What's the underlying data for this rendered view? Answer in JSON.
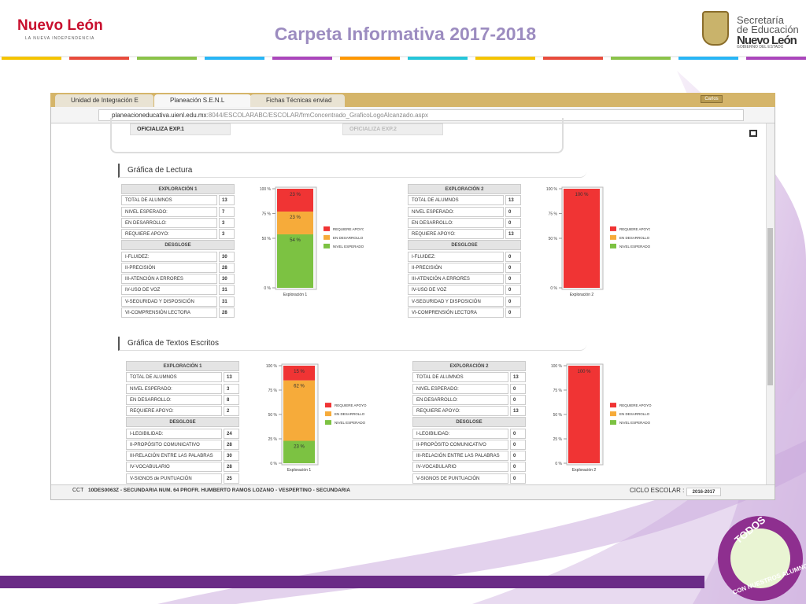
{
  "header": {
    "title": "Carpeta Informativa 2017-2018",
    "logo_left": "Nuevo León",
    "logo_left_tagline": "LA NUEVA INDEPENDENCIA",
    "logo_right": [
      "Secretaría",
      "de Educación",
      "Nuevo León",
      "GOBIERNO DEL ESTADO"
    ]
  },
  "browser": {
    "tabs": [
      "Unidad de Integración E",
      "Planeación S.E.N.L",
      "Fichas Técnicas enviad"
    ],
    "user": "Carlos",
    "url_host": "planeacioneducativa.uienl.edu.mx",
    "url_path": ":8044/ESCOLARABC/ESCOLAR/frmConcentrado_GraficoLogoAlcanzado.aspx"
  },
  "buttons": [
    "OFICIALIZA EXP.1",
    "OFICIALIZA EXP.2"
  ],
  "sections": [
    {
      "title": "Gráfica de Lectura",
      "panels": [
        {
          "table_header": "EXPLORACIÓN 1",
          "rows": [
            [
              "TOTAL DE ALUMNOS",
              13
            ],
            [
              "NIVEL ESPERADO:",
              7
            ],
            [
              "EN DESARROLLO:",
              3
            ],
            [
              "REQUIERE APOYO:",
              3
            ]
          ],
          "desglose_header": "DESGLOSE",
          "desglose": [
            [
              "I-FLUIDEZ:",
              30
            ],
            [
              "II-PRECISIÓN",
              28
            ],
            [
              "III-ATENCIÓN A ERRORES",
              30
            ],
            [
              "IV-USO DE VOZ",
              31
            ],
            [
              "V-SEGURIDAD Y DISPOSICIÓN",
              31
            ],
            [
              "VI-COMPRENSIÓN LECTORA",
              28
            ]
          ],
          "chart": {
            "type": "bar",
            "stacked": true,
            "x_label": "Exploración 1",
            "ylim": [
              0,
              100
            ],
            "yticks": [
              {
                "value": 0,
                "label": "0 %"
              },
              {
                "value": 50,
                "label": "50 %"
              },
              {
                "value": 75,
                "label": "75 %"
              },
              {
                "value": 100,
                "label": "100 %"
              }
            ],
            "series": [
              {
                "name": "REQUIERE APOYO",
                "color": "#f03434",
                "values": [
                  23
                ],
                "value_labels": [
                  "23 %"
                ]
              },
              {
                "name": "EN DESARROLLO",
                "color": "#f6ab3a",
                "values": [
                  23
                ],
                "value_labels": [
                  "23 %"
                ]
              },
              {
                "name": "NIVEL ESPERADO",
                "color": "#7cc242",
                "values": [
                  54
                ],
                "value_labels": [
                  "54 %"
                ]
              }
            ]
          }
        },
        {
          "table_header": "EXPLORACIÓN 2",
          "rows": [
            [
              "TOTAL DE ALUMNOS",
              13
            ],
            [
              "NIVEL ESPERADO:",
              0
            ],
            [
              "EN DESARROLLO:",
              0
            ],
            [
              "REQUIERE APOYO:",
              13
            ]
          ],
          "desglose_header": "DESGLOSE",
          "desglose": [
            [
              "I-FLUIDEZ:",
              0
            ],
            [
              "II-PRECISIÓN",
              0
            ],
            [
              "III-ATENCIÓN A ERRORES",
              0
            ],
            [
              "IV-USO DE VOZ",
              0
            ],
            [
              "V-SEGURIDAD Y DISPOSICIÓN",
              0
            ],
            [
              "VI-COMPRENSIÓN LECTORA",
              0
            ]
          ],
          "chart": {
            "type": "bar",
            "stacked": true,
            "x_label": "Exploración 2",
            "ylim": [
              0,
              100
            ],
            "yticks": [
              {
                "value": 0,
                "label": "0 %"
              },
              {
                "value": 50,
                "label": "50 %"
              },
              {
                "value": 75,
                "label": "75 %"
              },
              {
                "value": 100,
                "label": "100 %"
              }
            ],
            "series": [
              {
                "name": "REQUIERE APOYO",
                "color": "#f03434",
                "values": [
                  100
                ],
                "value_labels": [
                  "100 %"
                ]
              },
              {
                "name": "EN DESARROLLO",
                "color": "#f6ab3a",
                "values": [
                  0
                ],
                "value_labels": [
                  null
                ]
              },
              {
                "name": "NIVEL ESPERADO",
                "color": "#7cc242",
                "values": [
                  0
                ],
                "value_labels": [
                  null
                ]
              }
            ]
          }
        }
      ]
    },
    {
      "title": "Gráfica de Textos Escritos",
      "panels": [
        {
          "table_header": "EXPLORACIÓN 1",
          "rows": [
            [
              "TOTAL DE ALUMNOS",
              13
            ],
            [
              "NIVEL ESPERADO:",
              3
            ],
            [
              "EN DESARROLLO:",
              8
            ],
            [
              "REQUIERE APOYO:",
              2
            ]
          ],
          "desglose_header": "DESGLOSE",
          "desglose": [
            [
              "I-LEGIBILIDAD:",
              24
            ],
            [
              "II-PROPÓSITO COMUNICATIVO",
              28
            ],
            [
              "III-RELACIÓN ENTRE LAS PALABRAS",
              30
            ],
            [
              "IV-VOCABULARIO",
              28
            ],
            [
              "V-SIGNOS de PUNTUACIÓN",
              25
            ]
          ],
          "chart": {
            "type": "bar",
            "stacked": true,
            "x_label": "Exploración 1",
            "ylim": [
              0,
              100
            ],
            "yticks": [
              {
                "value": 0,
                "label": "0 %"
              },
              {
                "value": 25,
                "label": "25 %"
              },
              {
                "value": 50,
                "label": "50 %"
              },
              {
                "value": 75,
                "label": "75 %"
              },
              {
                "value": 100,
                "label": "100 %"
              }
            ],
            "series": [
              {
                "name": "REQUIERE APOYO",
                "color": "#f03434",
                "values": [
                  15
                ],
                "value_labels": [
                  "15 %"
                ]
              },
              {
                "name": "EN DESARROLLO",
                "color": "#f6ab3a",
                "values": [
                  62
                ],
                "value_labels": [
                  "62 %"
                ]
              },
              {
                "name": "NIVEL ESPERADO",
                "color": "#7cc242",
                "values": [
                  23
                ],
                "value_labels": [
                  "23 %"
                ]
              }
            ]
          }
        },
        {
          "table_header": "EXPLORACIÓN 2",
          "rows": [
            [
              "TOTAL DE ALUMNOS",
              13
            ],
            [
              "NIVEL ESPERADO:",
              0
            ],
            [
              "EN DESARROLLO:",
              0
            ],
            [
              "REQUIERE APOYO:",
              13
            ]
          ],
          "desglose_header": "DESGLOSE",
          "desglose": [
            [
              "I-LEGIBILIDAD:",
              0
            ],
            [
              "II-PROPÓSITO COMUNICATIVO",
              0
            ],
            [
              "III-RELACIÓN ENTRE LAS PALABRAS",
              0
            ],
            [
              "IV-VOCABULARIO",
              0
            ],
            [
              "V-SIGNOS DE PUNTUACIÓN",
              0
            ]
          ],
          "chart": {
            "type": "bar",
            "stacked": true,
            "x_label": "Exploración 2",
            "ylim": [
              0,
              100
            ],
            "yticks": [
              {
                "value": 0,
                "label": "0 %"
              },
              {
                "value": 25,
                "label": "25 %"
              },
              {
                "value": 50,
                "label": "50 %"
              },
              {
                "value": 75,
                "label": "75 %"
              },
              {
                "value": 100,
                "label": "100 %"
              }
            ],
            "series": [
              {
                "name": "REQUIERE APOYO",
                "color": "#f03434",
                "values": [
                  100
                ],
                "value_labels": [
                  "100 %"
                ]
              },
              {
                "name": "EN DESARROLLO",
                "color": "#f6ab3a",
                "values": [
                  0
                ],
                "value_labels": [
                  null
                ]
              },
              {
                "name": "NIVEL ESPERADO",
                "color": "#7cc242",
                "values": [
                  0
                ],
                "value_labels": [
                  null
                ]
              }
            ]
          }
        }
      ]
    }
  ],
  "footer": {
    "cct_label": "CCT",
    "school": "10DES0063Z - SECUNDARIA NUM. 64 PROFR. HUMBERTO RAMOS LOZANO - VESPERTINO - SECUNDARIA",
    "ciclo_label": "CICLO ESCOLAR :",
    "ciclo": "2016-2017"
  },
  "badge": [
    "TODOS",
    "CON NUESTROS ALUMNOS"
  ]
}
